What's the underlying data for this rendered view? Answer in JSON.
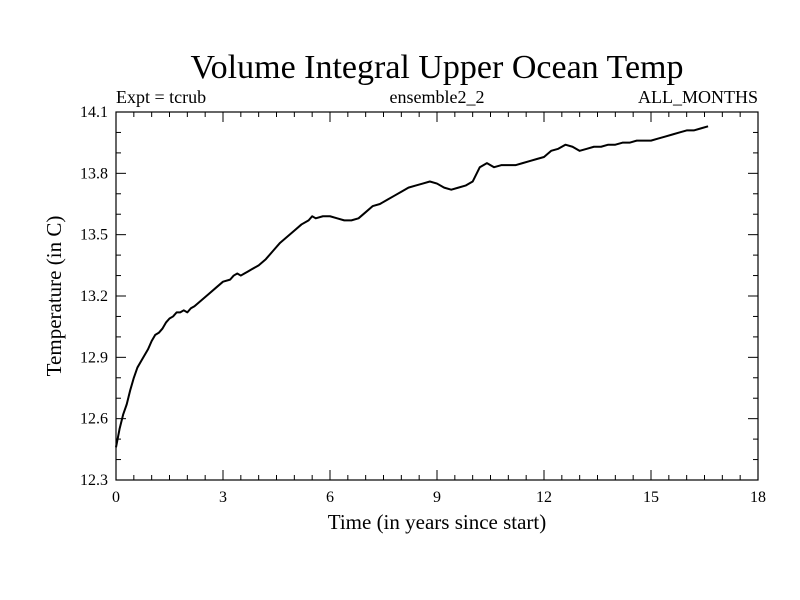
{
  "chart_data": {
    "type": "line",
    "title": "Volume Integral Upper Ocean Temp",
    "header_left": "Expt = tcrub",
    "header_center": "ensemble2_2",
    "header_right": "ALL_MONTHS",
    "xlabel": "Time (in years since start)",
    "ylabel": "Temperature (in C)",
    "xlim": [
      0,
      18
    ],
    "ylim": [
      12.3,
      14.1
    ],
    "xticks": [
      0,
      3,
      6,
      9,
      12,
      15,
      18
    ],
    "yticks": [
      12.3,
      12.6,
      12.9,
      13.2,
      13.5,
      13.8,
      14.1
    ],
    "xtick_labels": [
      "0",
      "3",
      "6",
      "9",
      "12",
      "15",
      "18"
    ],
    "ytick_labels": [
      "12.3",
      "12.6",
      "12.9",
      "13.2",
      "13.5",
      "13.8",
      "14.1"
    ],
    "grid": false,
    "series": [
      {
        "name": "ensemble2_2",
        "color": "#000000",
        "x": [
          0.0,
          0.1,
          0.2,
          0.3,
          0.4,
          0.5,
          0.6,
          0.7,
          0.8,
          0.9,
          1.0,
          1.1,
          1.2,
          1.3,
          1.4,
          1.5,
          1.6,
          1.7,
          1.8,
          1.9,
          2.0,
          2.1,
          2.2,
          2.4,
          2.6,
          2.8,
          3.0,
          3.2,
          3.3,
          3.4,
          3.5,
          3.6,
          3.7,
          3.8,
          4.0,
          4.2,
          4.4,
          4.6,
          4.8,
          5.0,
          5.2,
          5.4,
          5.5,
          5.6,
          5.8,
          6.0,
          6.2,
          6.4,
          6.6,
          6.8,
          7.0,
          7.2,
          7.4,
          7.6,
          7.8,
          8.0,
          8.2,
          8.4,
          8.6,
          8.8,
          9.0,
          9.2,
          9.4,
          9.6,
          9.8,
          10.0,
          10.2,
          10.4,
          10.6,
          10.8,
          11.0,
          11.2,
          11.4,
          11.6,
          11.8,
          12.0,
          12.2,
          12.4,
          12.6,
          12.8,
          13.0,
          13.2,
          13.4,
          13.6,
          13.8,
          14.0,
          14.2,
          14.4,
          14.6,
          14.8,
          15.0,
          15.2,
          15.4,
          15.6,
          15.8,
          16.0,
          16.2,
          16.4,
          16.6
        ],
        "values": [
          12.46,
          12.55,
          12.62,
          12.67,
          12.74,
          12.8,
          12.85,
          12.88,
          12.91,
          12.94,
          12.98,
          13.01,
          13.02,
          13.04,
          13.07,
          13.09,
          13.1,
          13.12,
          13.12,
          13.13,
          13.12,
          13.14,
          13.15,
          13.18,
          13.21,
          13.24,
          13.27,
          13.28,
          13.3,
          13.31,
          13.3,
          13.31,
          13.32,
          13.33,
          13.35,
          13.38,
          13.42,
          13.46,
          13.49,
          13.52,
          13.55,
          13.57,
          13.59,
          13.58,
          13.59,
          13.59,
          13.58,
          13.57,
          13.57,
          13.58,
          13.61,
          13.64,
          13.65,
          13.67,
          13.69,
          13.71,
          13.73,
          13.74,
          13.75,
          13.76,
          13.75,
          13.73,
          13.72,
          13.73,
          13.74,
          13.76,
          13.83,
          13.85,
          13.83,
          13.84,
          13.84,
          13.84,
          13.85,
          13.86,
          13.87,
          13.88,
          13.91,
          13.92,
          13.94,
          13.93,
          13.91,
          13.92,
          13.93,
          13.93,
          13.94,
          13.94,
          13.95,
          13.95,
          13.96,
          13.96,
          13.96,
          13.97,
          13.98,
          13.99,
          14.0,
          14.01,
          14.01,
          14.02,
          14.03
        ]
      }
    ]
  }
}
